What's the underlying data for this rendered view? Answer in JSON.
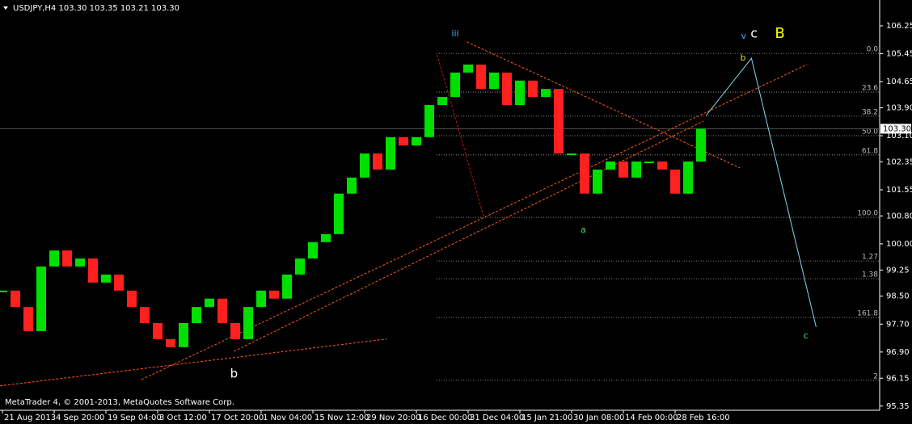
{
  "chart_data": {
    "type": "candlestick",
    "title": "USDJPY,H4  103.30 103.35 103.21 103.30",
    "copyright": "MetaTrader 4, © 2001-2013, MetaQuotes Software Corp.",
    "up_color": "#00e000",
    "down_color": "#ff2020",
    "categories": [
      "21 Aug 2013",
      null,
      null,
      null,
      "4 Sep 20:00",
      null,
      null,
      null,
      "19 Sep 04:00",
      null,
      null,
      null,
      "3 Oct 12:00",
      null,
      null,
      null,
      "17 Oct 20:00",
      null,
      null,
      null,
      "1 Nov 04:00",
      null,
      null,
      null,
      "15 Nov 12:00",
      null,
      null,
      null,
      "29 Nov 20:00",
      null,
      null,
      null,
      "16 Dec 00:00",
      null,
      null,
      null,
      "31 Dec 04:00",
      null,
      null,
      null,
      "15 Jan 21:00",
      null,
      null,
      null,
      "30 Jan 08:00",
      null,
      null,
      null,
      "14 Feb 00:00",
      null,
      null,
      null,
      "28 Feb 16:00",
      null,
      null,
      null,
      null,
      null,
      null,
      null,
      null,
      null,
      null,
      null,
      null,
      null,
      null,
      null
    ],
    "values": [
      98.66,
      98.19,
      97.5,
      99.35,
      99.81,
      99.35,
      99.58,
      98.89,
      99.12,
      98.66,
      98.19,
      97.73,
      97.27,
      97.04,
      97.73,
      98.19,
      98.43,
      97.73,
      97.27,
      98.19,
      98.66,
      98.43,
      99.12,
      99.58,
      100.05,
      100.28,
      101.44,
      101.9,
      102.59,
      102.13,
      103.06,
      102.82,
      103.06,
      103.98,
      104.21,
      104.91,
      105.14,
      104.44,
      104.91,
      103.98,
      104.68,
      104.21,
      104.44,
      102.59,
      102.59,
      101.44,
      102.13,
      102.36,
      101.9,
      102.36,
      102.36,
      102.13,
      101.44,
      102.36,
      103.3,
      null,
      null,
      null,
      null,
      null,
      null,
      null,
      null,
      null,
      null,
      null,
      null,
      null
    ],
    "ylim": [
      95.23,
      106.99
    ],
    "yticks": [
      106.25,
      105.45,
      104.65,
      {
        "value": 103.9,
        "label": "103.90"
      },
      {
        "value": 103.1,
        "label": "103.10"
      },
      102.35,
      101.55,
      {
        "value": 100.8,
        "label": "100.80"
      },
      {
        "value": 100,
        "label": "100.00"
      },
      99.25,
      {
        "value": 98.5,
        "label": "98.50"
      },
      {
        "value": 97.7,
        "label": "97.70"
      },
      {
        "value": 96.9,
        "label": "96.90"
      },
      96.15,
      95.35
    ],
    "last_price": {
      "value": 103.3,
      "label": "103.30"
    },
    "fib_levels": [
      {
        "label": "0.0",
        "value": 105.46
      },
      {
        "label": "23.6",
        "value": 104.35
      },
      {
        "label": "38.2",
        "value": 103.66
      },
      {
        "label": "50.0",
        "value": 103.1
      },
      {
        "label": "61.8",
        "value": 102.55
      },
      {
        "label": "100.0",
        "value": 100.76
      },
      {
        "label": "1.27",
        "value": 99.51
      },
      {
        "label": "1.38",
        "value": 99.0
      },
      {
        "label": "161.8",
        "value": 97.89
      },
      {
        "label": "2",
        "value": 96.09
      }
    ],
    "trend_lines": [
      {
        "x": [
          -0.19,
          29.7
        ],
        "y": [
          95.93,
          97.27
        ],
        "color": "#ff5a1a"
      },
      {
        "x": [
          10.75,
          62.2
        ],
        "y": [
          96.11,
          105.14
        ],
        "color": "#ff5a1a"
      },
      {
        "x": [
          17.9,
          54.2
        ],
        "y": [
          96.92,
          103.52
        ],
        "color": "#ff5a1a"
      },
      {
        "x": [
          35.9,
          57.0
        ],
        "y": [
          105.79,
          102.18
        ],
        "color": "#ff5a1a"
      },
      {
        "x": [
          33.6,
          37.2
        ],
        "y": [
          105.42,
          100.79
        ],
        "color": "#d01010"
      }
    ],
    "projection": {
      "x": [
        54.4,
        57.9,
        62.9
      ],
      "y": [
        103.68,
        105.32,
        97.62
      ],
      "color": "#80d8f0"
    },
    "annotations": [
      {
        "text": "iii",
        "x": 35,
        "y": 106.02,
        "color": "#40b0ff",
        "size": 11
      },
      {
        "text": "v",
        "x": 57.3,
        "y": 105.95,
        "color": "#40b0ff",
        "size": 11
      },
      {
        "text": "c",
        "x": 58.1,
        "y": 106.02,
        "color": "#ffffff",
        "size": 16
      },
      {
        "text": "B",
        "x": 60.1,
        "y": 106.02,
        "color": "#ffff00",
        "size": 18
      },
      {
        "text": "b",
        "x": 57.25,
        "y": 105.32,
        "color": "#d0e040",
        "size": 11
      },
      {
        "text": "a",
        "x": 44.9,
        "y": 100.39,
        "color": "#40e060",
        "size": 11
      },
      {
        "text": "c",
        "x": 62.1,
        "y": 97.36,
        "color": "#40e060",
        "size": 11
      },
      {
        "text": "b",
        "x": 17.9,
        "y": 96.27,
        "color": "#ffffff",
        "size": 15
      }
    ]
  }
}
